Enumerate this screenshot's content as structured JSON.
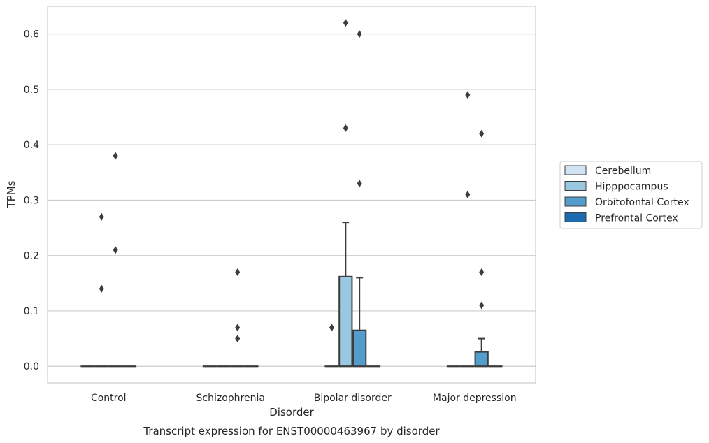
{
  "caption": "Transcript expression for ENST00000463967 by disorder",
  "chart_data": {
    "type": "box",
    "title": "",
    "xlabel": "Disorder",
    "ylabel": "TPMs",
    "ylim": [
      -0.03,
      0.65
    ],
    "yticks": [
      0.0,
      0.1,
      0.2,
      0.3,
      0.4,
      0.5,
      0.6
    ],
    "ytick_labels": [
      "0.0",
      "0.1",
      "0.2",
      "0.3",
      "0.4",
      "0.5",
      "0.6"
    ],
    "grid": "horizontal",
    "legend_position": "right",
    "categories": [
      "Control",
      "Schizophrenia",
      "Bipolar disorder",
      "Major depression"
    ],
    "series": [
      {
        "name": "Cerebellum",
        "color": "#d2e3f3",
        "boxes": [
          {
            "q1": 0,
            "median": 0,
            "q3": 0,
            "whisker_low": 0,
            "whisker_high": 0,
            "outliers": []
          },
          {
            "q1": 0,
            "median": 0,
            "q3": 0,
            "whisker_low": 0,
            "whisker_high": 0,
            "outliers": []
          },
          {
            "q1": 0,
            "median": 0,
            "q3": 0,
            "whisker_low": 0,
            "whisker_high": 0,
            "outliers": [
              0.07
            ]
          },
          {
            "q1": 0,
            "median": 0,
            "q3": 0,
            "whisker_low": 0,
            "whisker_high": 0,
            "outliers": []
          }
        ]
      },
      {
        "name": "Hipppocampus",
        "color": "#9ac8e0",
        "boxes": [
          {
            "q1": 0,
            "median": 0,
            "q3": 0,
            "whisker_low": 0,
            "whisker_high": 0,
            "outliers": [
              0.27,
              0.14
            ]
          },
          {
            "q1": 0,
            "median": 0,
            "q3": 0,
            "whisker_low": 0,
            "whisker_high": 0,
            "outliers": []
          },
          {
            "q1": 0,
            "median": 0,
            "q3": 0.162,
            "whisker_low": 0,
            "whisker_high": 0.26,
            "outliers": [
              0.62,
              0.43
            ]
          },
          {
            "q1": 0,
            "median": 0,
            "q3": 0,
            "whisker_low": 0,
            "whisker_high": 0,
            "outliers": [
              0.49,
              0.31
            ]
          }
        ]
      },
      {
        "name": "Orbitofontal Cortex",
        "color": "#529dcc",
        "boxes": [
          {
            "q1": 0,
            "median": 0,
            "q3": 0,
            "whisker_low": 0,
            "whisker_high": 0,
            "outliers": [
              0.38,
              0.21
            ]
          },
          {
            "q1": 0,
            "median": 0,
            "q3": 0,
            "whisker_low": 0,
            "whisker_high": 0,
            "outliers": [
              0.17,
              0.07,
              0.05
            ]
          },
          {
            "q1": 0,
            "median": 0,
            "q3": 0.065,
            "whisker_low": 0,
            "whisker_high": 0.16,
            "outliers": [
              0.6,
              0.33
            ]
          },
          {
            "q1": 0,
            "median": 0,
            "q3": 0.026,
            "whisker_low": 0,
            "whisker_high": 0.05,
            "outliers": [
              0.42,
              0.17,
              0.11
            ]
          }
        ]
      },
      {
        "name": "Prefrontal Cortex",
        "color": "#1c6aaf",
        "boxes": [
          {
            "q1": 0,
            "median": 0,
            "q3": 0,
            "whisker_low": 0,
            "whisker_high": 0,
            "outliers": []
          },
          {
            "q1": 0,
            "median": 0,
            "q3": 0,
            "whisker_low": 0,
            "whisker_high": 0,
            "outliers": []
          },
          {
            "q1": 0,
            "median": 0,
            "q3": 0,
            "whisker_low": 0,
            "whisker_high": 0,
            "outliers": []
          },
          {
            "q1": 0,
            "median": 0,
            "q3": 0,
            "whisker_low": 0,
            "whisker_high": 0,
            "outliers": []
          }
        ]
      }
    ]
  }
}
